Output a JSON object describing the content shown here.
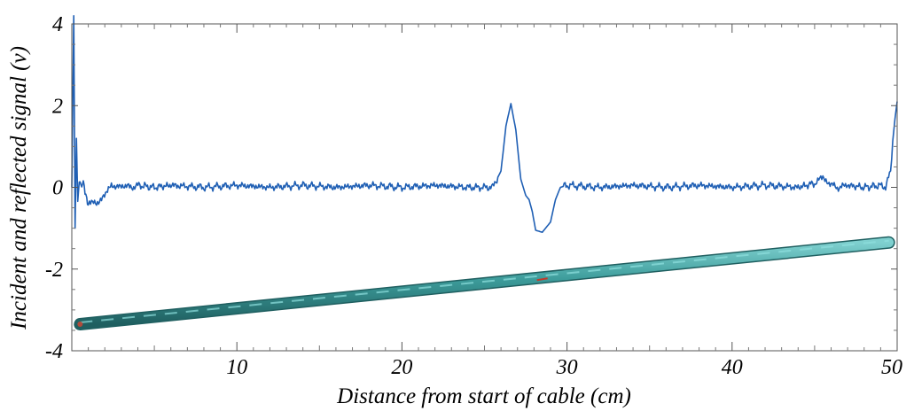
{
  "chart_data": {
    "type": "line",
    "title": "",
    "xlabel": "Distance from start of cable (cm)",
    "ylabel": "Incident and reflected signal (v)",
    "xlim": [
      0,
      50
    ],
    "ylim": [
      -4,
      4
    ],
    "x_ticks": [
      10,
      20,
      30,
      40,
      50
    ],
    "x_tick_labels": [
      "10",
      "20",
      "30",
      "40",
      "50"
    ],
    "y_ticks": [
      4,
      2,
      0,
      -2,
      -4
    ],
    "y_tick_labels": [
      "4",
      "2",
      "0",
      "-2",
      "-4"
    ],
    "grid": false,
    "legend": "none",
    "series": [
      {
        "color": "#1f5fb4",
        "x": [
          0.0,
          0.12,
          0.2,
          0.28,
          0.36,
          0.45,
          0.55,
          0.65,
          0.75,
          0.9,
          1.0,
          1.2,
          1.5,
          1.8,
          2.1,
          2.4,
          2.7,
          3.0,
          3.5,
          4.0,
          5.0,
          6.0,
          8.0,
          10.0,
          12.0,
          14.0,
          16.0,
          18.0,
          20.0,
          22.0,
          24.0,
          25.5,
          26.0,
          26.3,
          26.6,
          26.9,
          27.2,
          27.5,
          27.7,
          27.9,
          28.1,
          28.5,
          29.0,
          29.3,
          29.6,
          30.0,
          32.0,
          34.0,
          36.0,
          38.0,
          40.0,
          42.0,
          44.0,
          45.0,
          45.5,
          46.0,
          46.5,
          47.0,
          48.0,
          49.0,
          49.3,
          49.6,
          49.8,
          50.0
        ],
        "y": [
          0.0,
          4.2,
          -1.0,
          1.2,
          -0.4,
          0.2,
          0.0,
          0.1,
          0.05,
          -0.3,
          -0.4,
          -0.35,
          -0.4,
          -0.3,
          -0.1,
          0.05,
          0.0,
          0.05,
          0.0,
          0.05,
          0.0,
          0.05,
          0.0,
          0.05,
          0.0,
          0.05,
          0.0,
          0.05,
          0.0,
          0.05,
          0.0,
          0.0,
          0.4,
          1.5,
          2.05,
          1.4,
          0.2,
          -0.2,
          -0.3,
          -0.6,
          -1.05,
          -1.1,
          -0.85,
          -0.3,
          0.0,
          0.05,
          0.0,
          0.05,
          0.0,
          0.05,
          0.0,
          0.05,
          0.0,
          0.1,
          0.25,
          0.05,
          0.0,
          0.05,
          0.0,
          0.05,
          0.0,
          0.4,
          1.5,
          2.1
        ]
      }
    ],
    "annotations": {
      "cable_image": {
        "from": [
          0.5,
          -3.35
        ],
        "to": [
          49.5,
          -1.35
        ],
        "color": "#2e8b8b",
        "marker_at": [
          28.5,
          -2.25
        ]
      }
    }
  }
}
